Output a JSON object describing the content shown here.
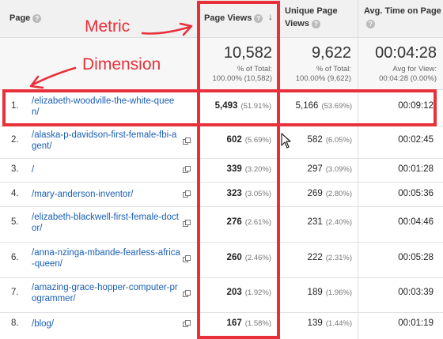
{
  "columns": {
    "page": "Page",
    "page_views": "Page Views",
    "unique_page_views": "Unique Page Views",
    "avg_time": "Avg. Time on Page",
    "help": "?"
  },
  "totals": {
    "page_views": {
      "value": "10,582",
      "line1": "% of Total:",
      "line2": "100.00% (10,582)"
    },
    "unique_page_views": {
      "value": "9,622",
      "line1": "% of Total:",
      "line2": "100.00% (9,622)"
    },
    "avg_time": {
      "value": "00:04:28",
      "line1": "Avg for View:",
      "line2": "00:04:28 (0.00%)"
    }
  },
  "rows": [
    {
      "num": "1.",
      "page": "/elizabeth-woodville-the-white-queen/",
      "pv": "5,493",
      "pv_pct": "(51.91%)",
      "upv": "5,166",
      "upv_pct": "(53.69%)",
      "avg": "00:09:12"
    },
    {
      "num": "2.",
      "page": "/alaska-p-davidson-first-female-fbi-agent/",
      "pv": "602",
      "pv_pct": "(5.69%)",
      "upv": "582",
      "upv_pct": "(6.05%)",
      "avg": "00:02:45"
    },
    {
      "num": "3.",
      "page": "/",
      "pv": "339",
      "pv_pct": "(3.20%)",
      "upv": "297",
      "upv_pct": "(3.09%)",
      "avg": "00:01:28"
    },
    {
      "num": "4.",
      "page": "/mary-anderson-inventor/",
      "pv": "323",
      "pv_pct": "(3.05%)",
      "upv": "269",
      "upv_pct": "(2.80%)",
      "avg": "00:05:36"
    },
    {
      "num": "5.",
      "page": "/elizabeth-blackwell-first-female-doctor/",
      "pv": "276",
      "pv_pct": "(2.61%)",
      "upv": "231",
      "upv_pct": "(2.40%)",
      "avg": "00:04:46"
    },
    {
      "num": "6.",
      "page": "/anna-nzinga-mbande-fearless-africa-queen/",
      "pv": "260",
      "pv_pct": "(2.46%)",
      "upv": "222",
      "upv_pct": "(2.31%)",
      "avg": "00:05:28"
    },
    {
      "num": "7.",
      "page": "/amazing-grace-hopper-computer-programmer/",
      "pv": "203",
      "pv_pct": "(1.92%)",
      "upv": "189",
      "upv_pct": "(1.96%)",
      "avg": "00:03:39"
    },
    {
      "num": "8.",
      "page": "/blog/",
      "pv": "167",
      "pv_pct": "(1.58%)",
      "upv": "139",
      "upv_pct": "(1.44%)",
      "avg": "00:01:19"
    }
  ],
  "annotations": {
    "metric": "Metric",
    "dimension": "Dimension"
  },
  "colors": {
    "annotation_red": "#e8303a",
    "link_blue": "#1a5fb4"
  }
}
